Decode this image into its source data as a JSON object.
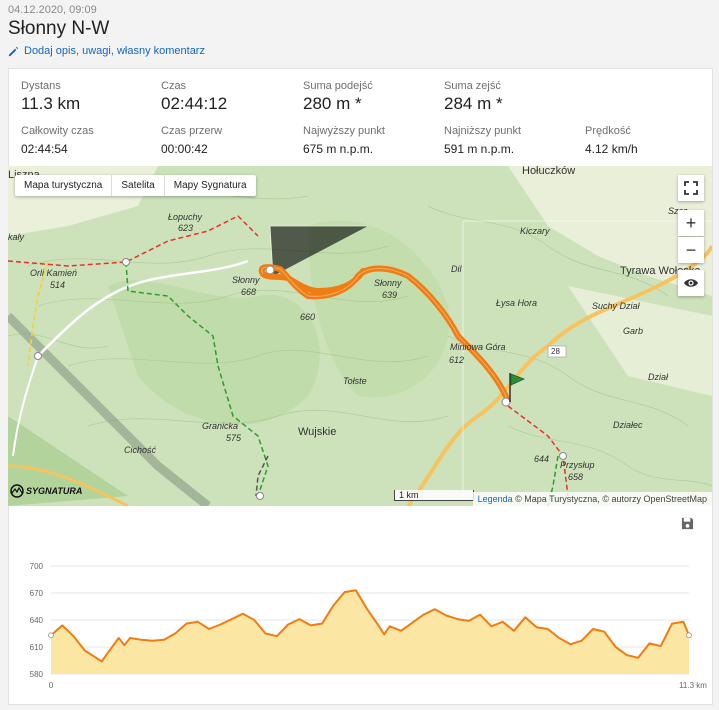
{
  "header": {
    "date": "04.12.2020, 09:09",
    "title": "Słonny N-W",
    "edit_link": "Dodaj opis, uwagi, własny komentarz"
  },
  "stats": {
    "distance": {
      "label": "Dystans",
      "value": "11.3 km"
    },
    "time": {
      "label": "Czas",
      "value": "02:44:12"
    },
    "ascent": {
      "label": "Suma podejść",
      "value": "280 m *"
    },
    "descent": {
      "label": "Suma zejść",
      "value": "284 m *"
    },
    "total_time": {
      "label": "Całkowity czas",
      "value": "02:44:54"
    },
    "break_time": {
      "label": "Czas przerw",
      "value": "00:00:42"
    },
    "highest": {
      "label": "Najwyższy punkt",
      "value": "675 m n.p.m."
    },
    "lowest": {
      "label": "Najniższy punkt",
      "value": "591 m n.p.m."
    },
    "speed": {
      "label": "Prędkość",
      "value": "4.12 km/h"
    }
  },
  "map": {
    "tabs": [
      "Mapa turystyczna",
      "Satelita",
      "Mapy Sygnatura"
    ],
    "controls": {
      "zoom_in": "+",
      "zoom_out": "−"
    },
    "scale": "1 km",
    "attribution_link": "Legenda",
    "attribution_text": "© Mapa Turystyczna, © autorzy OpenStreetMap",
    "logo": "SYGNATURA",
    "places": {
      "liszna": "Liszna",
      "holuczkow": "Hołuczków",
      "lopuchy": "Łopuchy",
      "lopuchy_h": "623",
      "kaly": "kały",
      "orli": "Orli Kamień",
      "orli_h": "514",
      "slonny668": "Słonny",
      "slonny668_h": "668",
      "slonny639": "Słonny",
      "slonny639_h": "639",
      "h660": "660",
      "dil": "Dil",
      "kiczary": "Kiczary",
      "lysa": "Łysa Hora",
      "tyrawa": "Tyrawa Wołoska",
      "suchy": "Suchy Dział",
      "garb": "Garb",
      "miniowa": "Miniowa Góra",
      "miniowa_h": "612",
      "tolste": "Tołste",
      "granicka": "Granicka",
      "granicka_h": "575",
      "wujskie": "Wujskie",
      "cichosc": "Cichość",
      "przyslup": "Przysłup",
      "przyslup_h": "658",
      "h644": "644",
      "dzial": "Dział",
      "dzialec": "Działec",
      "road28": "28",
      "szczob": "Szcz"
    }
  },
  "chart_data": {
    "type": "area",
    "title": "",
    "xlabel": "",
    "ylabel": "",
    "x_ticks": [
      "0",
      "11.3 km"
    ],
    "y_ticks": [
      580,
      610,
      640,
      670,
      700
    ],
    "ylim": [
      580,
      700
    ],
    "xlim": [
      0,
      11.3
    ],
    "colors": {
      "line": "#f07d13",
      "fill": "#fbe6a4"
    },
    "series": [
      {
        "x": [
          0,
          0.2,
          0.4,
          0.6,
          0.8,
          0.9,
          1.0,
          1.2,
          1.3,
          1.4,
          1.6,
          1.8,
          2.0,
          2.2,
          2.4,
          2.6,
          2.8,
          3.0,
          3.2,
          3.4,
          3.6,
          3.8,
          4.0,
          4.2,
          4.4,
          4.6,
          4.8,
          5.0,
          5.2,
          5.4,
          5.6,
          5.8,
          5.9,
          6.0,
          6.2,
          6.4,
          6.6,
          6.8,
          7.0,
          7.2,
          7.4,
          7.6,
          7.8,
          8.0,
          8.2,
          8.4,
          8.6,
          8.8,
          9.0,
          9.2,
          9.4,
          9.6,
          9.8,
          10.0,
          10.2,
          10.4,
          10.6,
          10.8,
          11.0,
          11.2,
          11.3
        ],
        "y": [
          623,
          634,
          622,
          606,
          598,
          594,
          603,
          620,
          612,
          620,
          618,
          617,
          618,
          625,
          636,
          638,
          630,
          635,
          641,
          647,
          640,
          625,
          622,
          635,
          641,
          634,
          636,
          656,
          671,
          673,
          652,
          634,
          624,
          633,
          628,
          637,
          646,
          652,
          645,
          641,
          639,
          646,
          633,
          638,
          628,
          643,
          632,
          630,
          620,
          613,
          617,
          630,
          627,
          610,
          601,
          598,
          614,
          611,
          636,
          638,
          623
        ]
      }
    ]
  }
}
